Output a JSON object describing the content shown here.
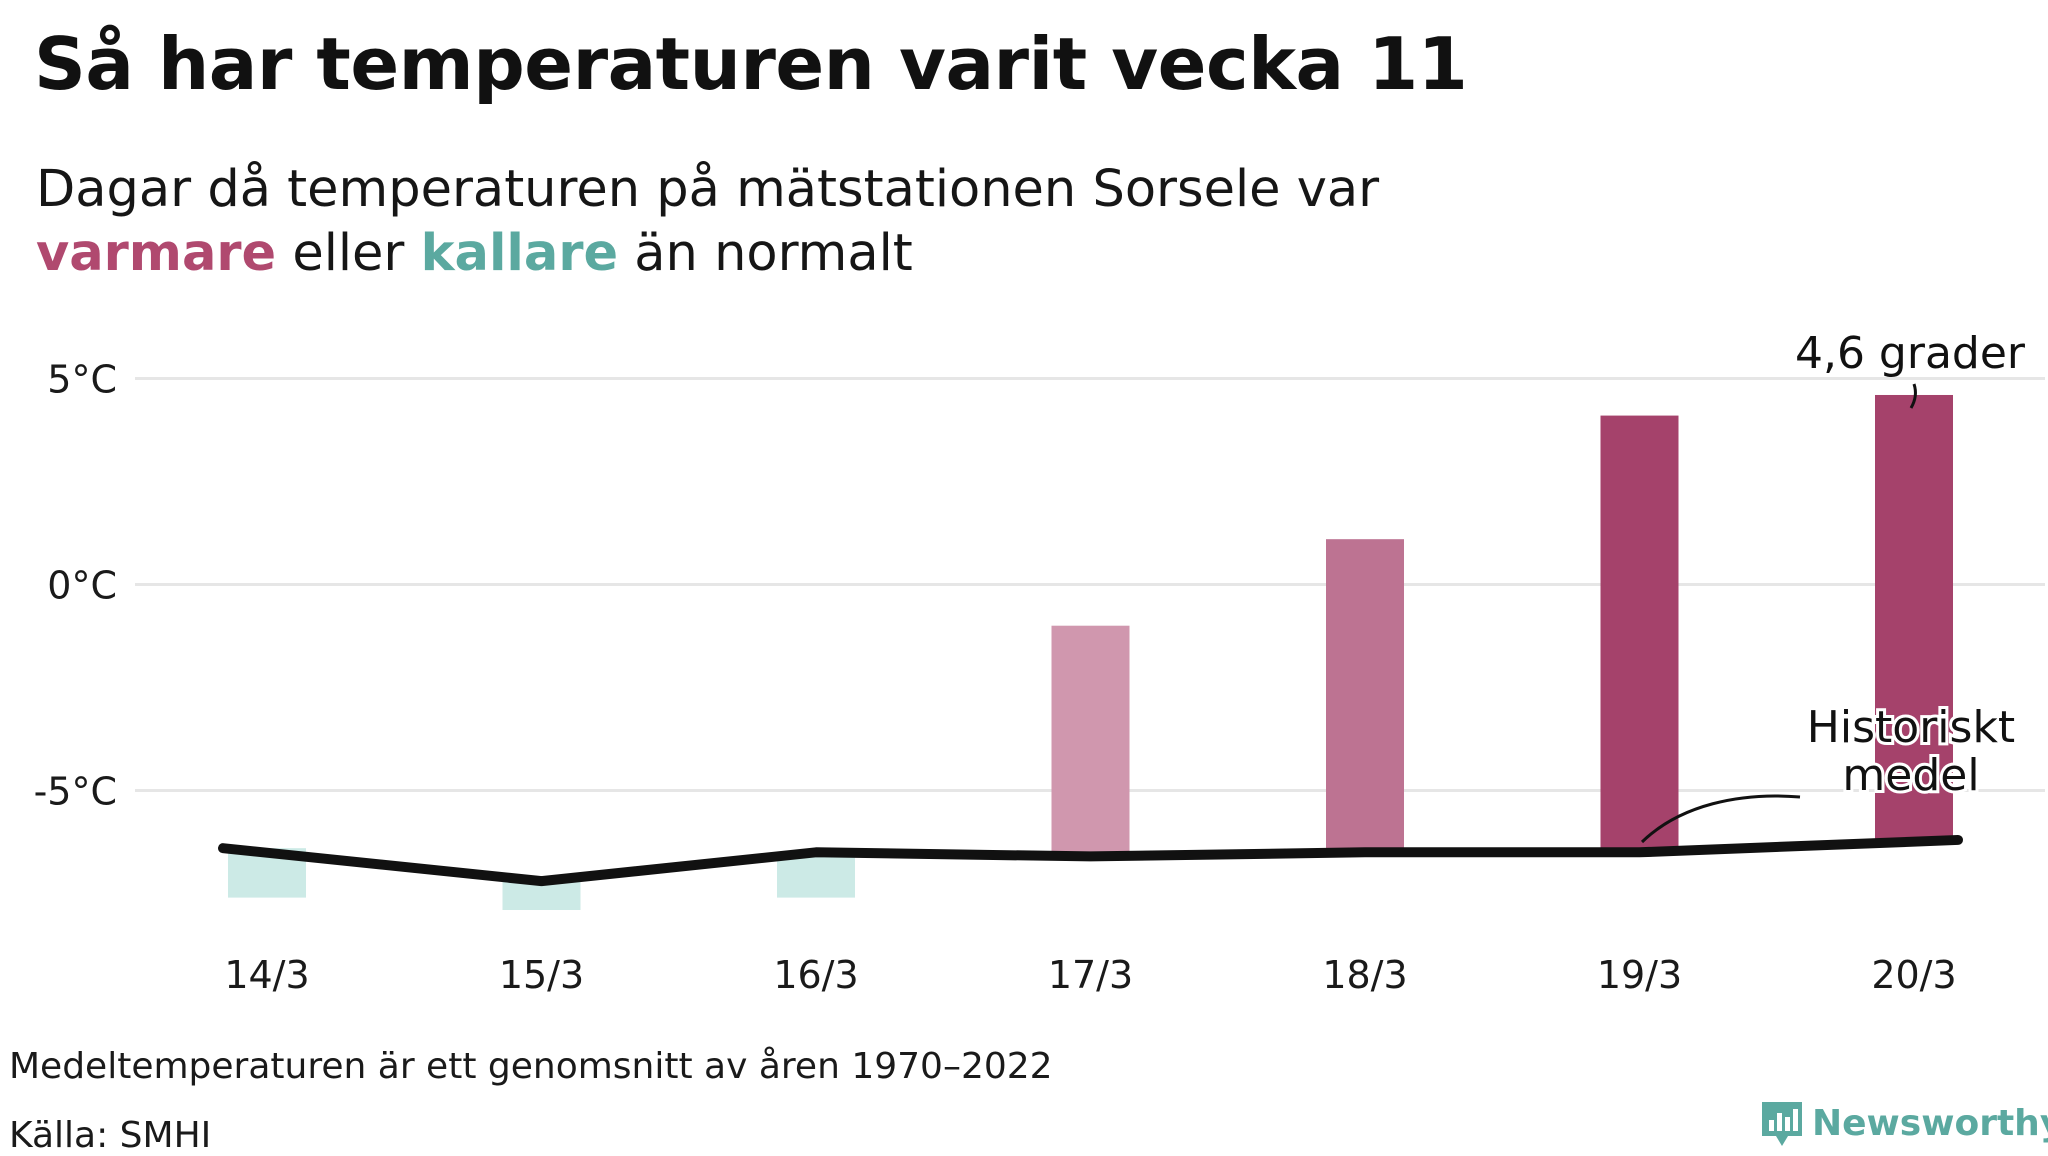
{
  "title": "Så har temperaturen varit vecka 11",
  "subtitle": {
    "line1": "Dagar då temperaturen på mätstationen Sorsele var",
    "warm_word": "varmare",
    "middle_word": "eller",
    "cold_word": "kallare",
    "end_phrase": "än normalt"
  },
  "colors": {
    "warm_strong": "#a5426b",
    "warm_mid": "#bd7392",
    "warm_light": "#d097ae",
    "cold": "#cceae6",
    "average_line": "#111111",
    "grid": "#e6e6e6",
    "warm_text": "#b0496f",
    "cold_text": "#5ba9a0"
  },
  "chart_data": {
    "type": "bar",
    "categories": [
      "14/3",
      "15/3",
      "16/3",
      "17/3",
      "18/3",
      "19/3",
      "20/3"
    ],
    "series": [
      {
        "name": "",
        "values": [
          -7.6,
          -7.9,
          -7.6,
          -1.0,
          1.1,
          4.1,
          4.6
        ]
      },
      {
        "name": "Historiskt medel",
        "type": "line",
        "values": [
          -6.4,
          -7.2,
          -6.5,
          -6.6,
          -6.5,
          -6.5,
          -6.2
        ]
      }
    ],
    "y_ticks": [
      "5°C",
      "0°C",
      "-5°C"
    ],
    "ylim": [
      -8.5,
      7
    ],
    "grid": true,
    "annotations": {
      "max_label": "4,6 grader",
      "average_label_line1": "Historiskt",
      "average_label_line2": "medel"
    }
  },
  "footer": {
    "note": "Medeltemperaturen är ett genomsnitt av åren 1970–2022",
    "source": "Källa: SMHI",
    "brand": "Newsworthy"
  }
}
